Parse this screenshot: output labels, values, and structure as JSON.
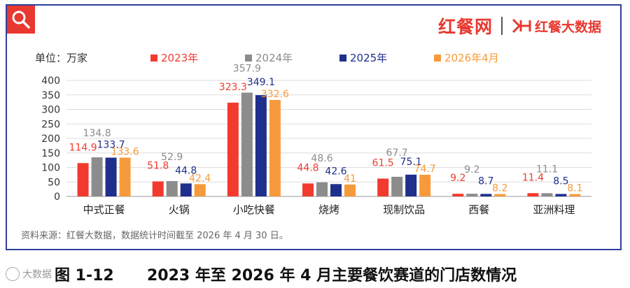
{
  "brand": {
    "name": "红餐网",
    "sub": "红餐大数据"
  },
  "unit_label": "单位：万家",
  "source_note": "资料来源：红餐大数据，数据统计时间截至 2026 年 4 月 30 日。",
  "caption": {
    "number": "图 1-12",
    "text": "2023 年至 2026 年 4 月主要餐饮赛道的门店数情况"
  },
  "watermark_text": "大数据",
  "chart_data": {
    "type": "bar",
    "categories": [
      "中式正餐",
      "火锅",
      "小吃快餐",
      "烧烤",
      "现制饮品",
      "西餐",
      "亚洲料理"
    ],
    "series": [
      {
        "name": "2023年",
        "color": "#f23a2e",
        "values": [
          114.9,
          51.8,
          323.3,
          44.8,
          61.5,
          9.2,
          11.4
        ]
      },
      {
        "name": "2024年",
        "color": "#8c8c8c",
        "values": [
          134.8,
          52.9,
          357.9,
          48.6,
          67.7,
          9.2,
          11.1
        ]
      },
      {
        "name": "2025年",
        "color": "#1f2f8c",
        "values": [
          133.7,
          44.8,
          349.1,
          42.6,
          75.1,
          8.7,
          8.5
        ]
      },
      {
        "name": "2026年4月",
        "color": "#f79a3b",
        "values": [
          133.6,
          42.4,
          332.6,
          41.0,
          74.7,
          8.2,
          8.1
        ]
      }
    ],
    "yticks": [
      "0",
      "50",
      "100",
      "150",
      "200",
      "250",
      "300",
      "350",
      "400"
    ],
    "ylim": [
      0,
      400
    ],
    "grid": true,
    "legend": "top"
  }
}
